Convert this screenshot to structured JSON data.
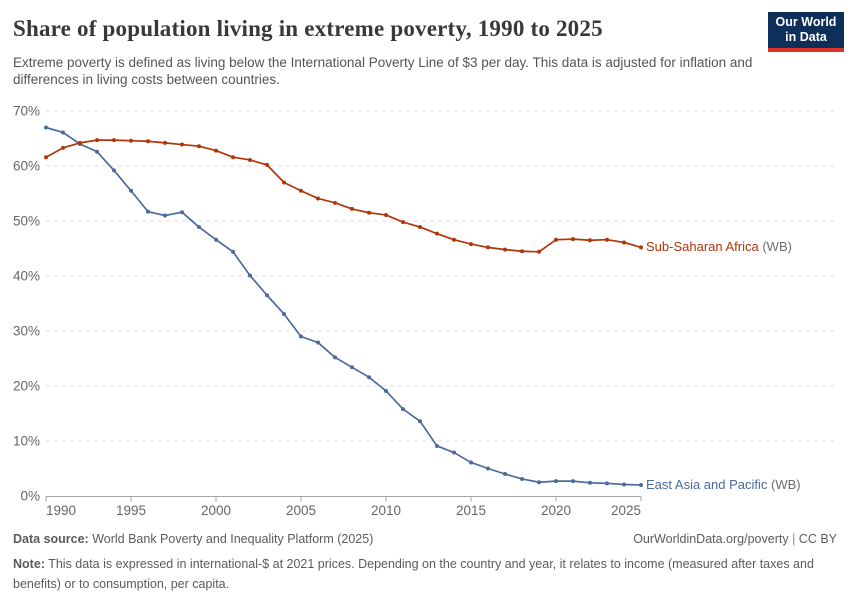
{
  "header": {
    "title": "Share of population living in extreme poverty, 1990 to 2025",
    "subtitle": "Extreme poverty is defined as living below the International Poverty Line of $3 per day. This data is adjusted for inflation and differences in living costs between countries.",
    "logo": {
      "line1": "Our World",
      "line2": "in Data",
      "bg_color": "#0E2F5A",
      "accent_color": "#DC3327"
    }
  },
  "chart_data": {
    "type": "line",
    "title": "Share of population living in extreme poverty, 1990 to 2025",
    "xlabel": "",
    "ylabel": "",
    "xlim": [
      1990,
      2025
    ],
    "ylim": [
      0,
      70
    ],
    "xticks": [
      1990,
      1995,
      2000,
      2005,
      2010,
      2015,
      2020,
      2025
    ],
    "yticks": [
      0,
      10,
      20,
      30,
      40,
      50,
      60,
      70
    ],
    "ytick_suffix": "%",
    "grid": "horizontal-dashed",
    "legend_position": "end-of-line",
    "x": [
      1990,
      1991,
      1992,
      1993,
      1994,
      1995,
      1996,
      1997,
      1998,
      1999,
      2000,
      2001,
      2002,
      2003,
      2004,
      2005,
      2006,
      2007,
      2008,
      2009,
      2010,
      2011,
      2012,
      2013,
      2014,
      2015,
      2016,
      2017,
      2018,
      2019,
      2020,
      2021,
      2022,
      2023,
      2024,
      2025
    ],
    "series": [
      {
        "name": "East Asia and Pacific (WB)",
        "label": "East Asia and Pacific",
        "label_suffix": " (WB)",
        "color": "#4C6A9C",
        "values": [
          67.0,
          66.1,
          64.0,
          62.6,
          59.2,
          55.5,
          51.7,
          51.0,
          51.6,
          48.9,
          46.6,
          44.4,
          40.1,
          36.5,
          33.1,
          29.0,
          27.9,
          25.2,
          23.4,
          21.6,
          19.1,
          15.8,
          13.6,
          9.1,
          7.9,
          6.1,
          5.0,
          4.0,
          3.1,
          2.5,
          2.7,
          2.7,
          2.4,
          2.3,
          2.1,
          2.0
        ]
      },
      {
        "name": "Sub-Saharan Africa (WB)",
        "label": "Sub-Saharan Africa",
        "label_suffix": " (WB)",
        "color": "#B13507",
        "values": [
          61.6,
          63.3,
          64.2,
          64.7,
          64.7,
          64.6,
          64.5,
          64.2,
          63.9,
          63.6,
          62.8,
          61.6,
          61.1,
          60.2,
          57.0,
          55.5,
          54.1,
          53.3,
          52.2,
          51.5,
          51.1,
          49.8,
          48.9,
          47.7,
          46.6,
          45.8,
          45.2,
          44.8,
          44.5,
          44.4,
          46.6,
          46.7,
          46.5,
          46.6,
          46.1,
          45.2
        ]
      }
    ],
    "axis_color": "#a3a3a3",
    "grid_color": "#dcdcdc",
    "tick_label_color": "#666666"
  },
  "footer": {
    "datasource_label": "Data source:",
    "datasource_text": " World Bank Poverty and Inequality Platform (2025)",
    "link_text": "OurWorldinData.org/poverty",
    "separator": " | ",
    "license_text": "CC BY",
    "note_label": "Note:",
    "note_text": " This data is expressed in international-$ at 2021 prices. Depending on the country and year, it relates to income (measured after taxes and benefits) or to consumption, per capita."
  }
}
